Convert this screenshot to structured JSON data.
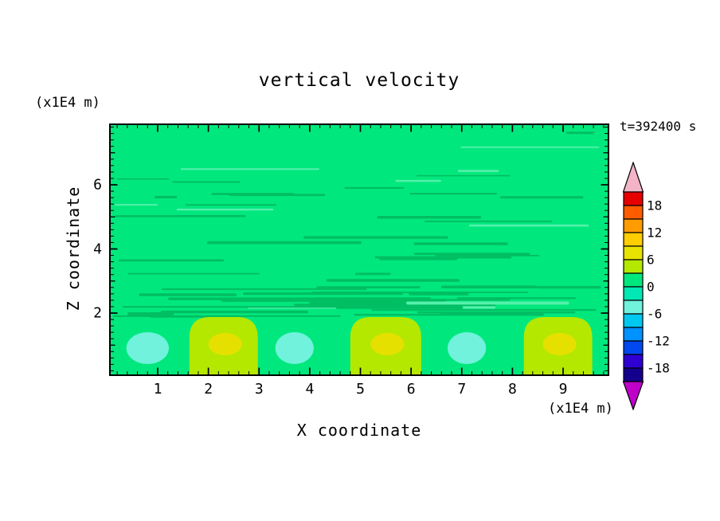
{
  "chart_data": {
    "type": "heatmap",
    "subtype": "filled-contour",
    "title": "vertical velocity",
    "time_label": "t=392400 s",
    "xlabel": "X coordinate",
    "ylabel": "Z coordinate",
    "x_units_label": "(x1E4 m)",
    "y_units_label": "(x1E4 m)",
    "xlim": [
      0,
      9.9
    ],
    "ylim": [
      0,
      7.9
    ],
    "x_ticks": [
      1,
      2,
      3,
      4,
      5,
      6,
      7,
      8,
      9
    ],
    "y_ticks": [
      2,
      4,
      6
    ],
    "x_minor_tick_step": 0.2,
    "y_minor_tick_step": 0.2,
    "grid": false,
    "legend_position": "right-colorbar",
    "colorbar": {
      "tick_values": [
        18,
        12,
        6,
        0,
        -6,
        -12,
        -18
      ],
      "cell_step": 3,
      "cell_range": [
        -21,
        21
      ],
      "colors_top_to_bottom": [
        "#E60000",
        "#FF5C00",
        "#FF9C00",
        "#FFCE00",
        "#E8E400",
        "#B4E800",
        "#00E87D",
        "#00E8B4",
        "#70F2DC",
        "#00C8F0",
        "#0092FF",
        "#0048F0",
        "#2E00D2",
        "#14008C"
      ],
      "top_cap_color": "#F2B4C6",
      "bottom_cap_color": "#BE00C8"
    },
    "palette": {
      "background": "#00E87D",
      "streak_dark": "#00BE63",
      "streak_light": "#55F0AC",
      "downdraft": "#70F2DC",
      "updraft": "#B4E800",
      "updraft_core": "#E6E000"
    },
    "field_description": "Vertical velocity w is near 0 (green) over most of the domain, with thin wavy streak perturbations for 2 < Z < 7, and a row of alternating convective cells below Z = 2: cyan downdrafts (w about -4 to -6) and yellow-green updrafts (w about +6 with yellow cores about +8).",
    "cells": [
      {
        "kind": "downdraft",
        "x_center": 0.8,
        "z_center": 0.9,
        "width": 1.0,
        "value": -5
      },
      {
        "kind": "updraft",
        "x_center": 2.3,
        "z_center": 0.9,
        "width": 1.35,
        "value": 6,
        "core_value": 8
      },
      {
        "kind": "downdraft",
        "x_center": 3.7,
        "z_center": 0.9,
        "width": 0.9,
        "value": -4
      },
      {
        "kind": "updraft",
        "x_center": 5.5,
        "z_center": 0.9,
        "width": 1.4,
        "value": 6,
        "core_value": 9
      },
      {
        "kind": "downdraft",
        "x_center": 7.1,
        "z_center": 0.9,
        "width": 0.9,
        "value": -4
      },
      {
        "kind": "updraft",
        "x_center": 8.9,
        "z_center": 0.9,
        "width": 1.35,
        "value": 6,
        "core_value": 8
      }
    ],
    "coarse_grid": {
      "x": [
        0.5,
        1.5,
        2.5,
        3.5,
        4.5,
        5.5,
        6.5,
        7.5,
        8.5,
        9.5
      ],
      "z": [
        7,
        6,
        5,
        4,
        3,
        2.5,
        1.5,
        0.8
      ],
      "w_values": [
        [
          0,
          0,
          0,
          0,
          0,
          0,
          0,
          0,
          0,
          0
        ],
        [
          0,
          0,
          0,
          0,
          0,
          0,
          0,
          0,
          0,
          0
        ],
        [
          0,
          0,
          0,
          0,
          0,
          0,
          0,
          0,
          0,
          0
        ],
        [
          0,
          0,
          0,
          0,
          0,
          0,
          0,
          0,
          0,
          0
        ],
        [
          0,
          0,
          0,
          0,
          0,
          0,
          0,
          0,
          0,
          0
        ],
        [
          0,
          0,
          0,
          0,
          0,
          0,
          0,
          0,
          0,
          0
        ],
        [
          -1,
          1,
          2,
          -1,
          0,
          2,
          -1,
          -1,
          1,
          2
        ],
        [
          -4,
          2,
          7,
          -4,
          1,
          8,
          -4,
          -3,
          5,
          7
        ]
      ]
    }
  }
}
